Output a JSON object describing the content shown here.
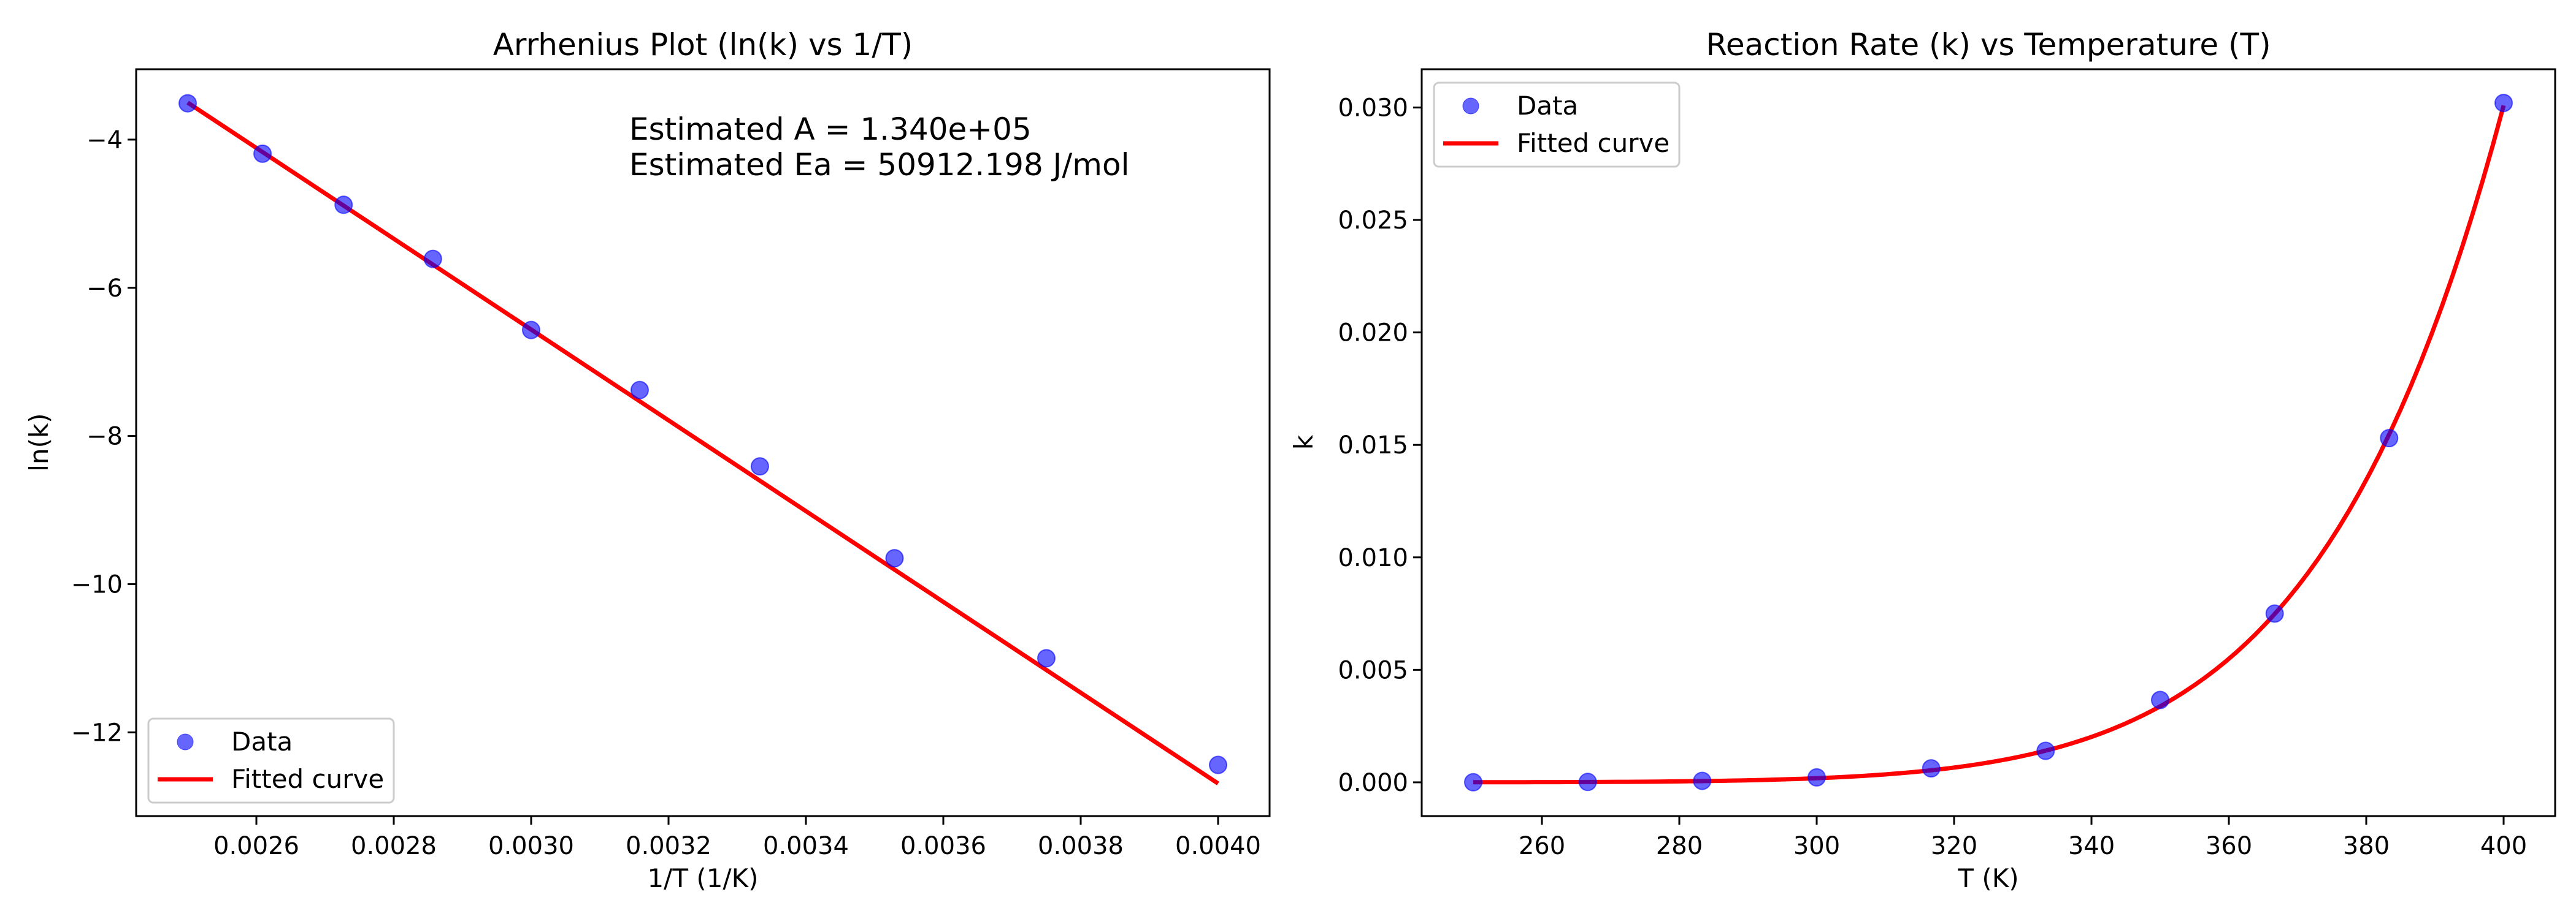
{
  "chart_data": [
    {
      "type": "scatter",
      "title": "Arrhenius Plot (ln(k) vs 1/T)",
      "xlabel": "1/T (1/K)",
      "ylabel": "ln(k)",
      "xlim": [
        0.002425,
        0.004075
      ],
      "ylim": [
        -13.13,
        -3.05
      ],
      "xticks": [
        0.0026,
        0.0028,
        0.003,
        0.0032,
        0.0034,
        0.0036,
        0.0038,
        0.004
      ],
      "xtick_labels": [
        "0.0026",
        "0.0028",
        "0.0030",
        "0.0032",
        "0.0034",
        "0.0036",
        "0.0038",
        "0.0040"
      ],
      "yticks": [
        -4,
        -6,
        -8,
        -10,
        -12
      ],
      "ytick_labels": [
        "−4",
        "−6",
        "−8",
        "−10",
        "−12"
      ],
      "grid": false,
      "legend_position": "lower-left",
      "annotation": [
        "Estimated A = 1.340e+05",
        "Estimated Ea = 50912.198 J/mol"
      ],
      "series": [
        {
          "name": "Data",
          "kind": "scatter",
          "color": "#0000ff",
          "x": [
            0.0025,
            0.002609,
            0.002727,
            0.002857,
            0.003,
            0.003158,
            0.003333,
            0.003529,
            0.00375,
            0.004
          ],
          "y": [
            -3.51,
            -4.19,
            -4.88,
            -5.61,
            -6.57,
            -7.38,
            -8.41,
            -9.65,
            -11.0,
            -12.44
          ]
        },
        {
          "name": "Fitted curve",
          "kind": "line",
          "color": "#ff0000",
          "x": [
            0.0025,
            0.004
          ],
          "y": [
            -3.5,
            -12.69
          ]
        }
      ]
    },
    {
      "type": "scatter",
      "title": "Reaction Rate (k) vs Temperature (T)",
      "xlabel": "T (K)",
      "ylabel": "k",
      "xlim": [
        242.5,
        407.5
      ],
      "ylim": [
        -0.0015,
        0.0317
      ],
      "xticks": [
        260,
        280,
        300,
        320,
        340,
        360,
        380,
        400
      ],
      "xtick_labels": [
        "260",
        "280",
        "300",
        "320",
        "340",
        "360",
        "380",
        "400"
      ],
      "yticks": [
        0,
        0.005,
        0.01,
        0.015,
        0.02,
        0.025,
        0.03
      ],
      "ytick_labels": [
        "0.000",
        "0.005",
        "0.010",
        "0.015",
        "0.020",
        "0.025",
        "0.030"
      ],
      "grid": false,
      "legend_position": "upper-left",
      "fit": {
        "A": 134000,
        "Ea": 50912.198
      },
      "series": [
        {
          "name": "Data",
          "kind": "scatter",
          "color": "#0000ff",
          "x": [
            250,
            266.67,
            283.33,
            300,
            316.67,
            333.33,
            350,
            366.67,
            383.33,
            400
          ],
          "y": [
            3.9e-06,
            1.67e-05,
            6.4e-05,
            0.00022,
            0.00062,
            0.0014,
            0.00366,
            0.0075,
            0.0153,
            0.0302
          ]
        },
        {
          "name": "Fitted curve",
          "kind": "line",
          "color": "#ff0000"
        }
      ]
    }
  ]
}
